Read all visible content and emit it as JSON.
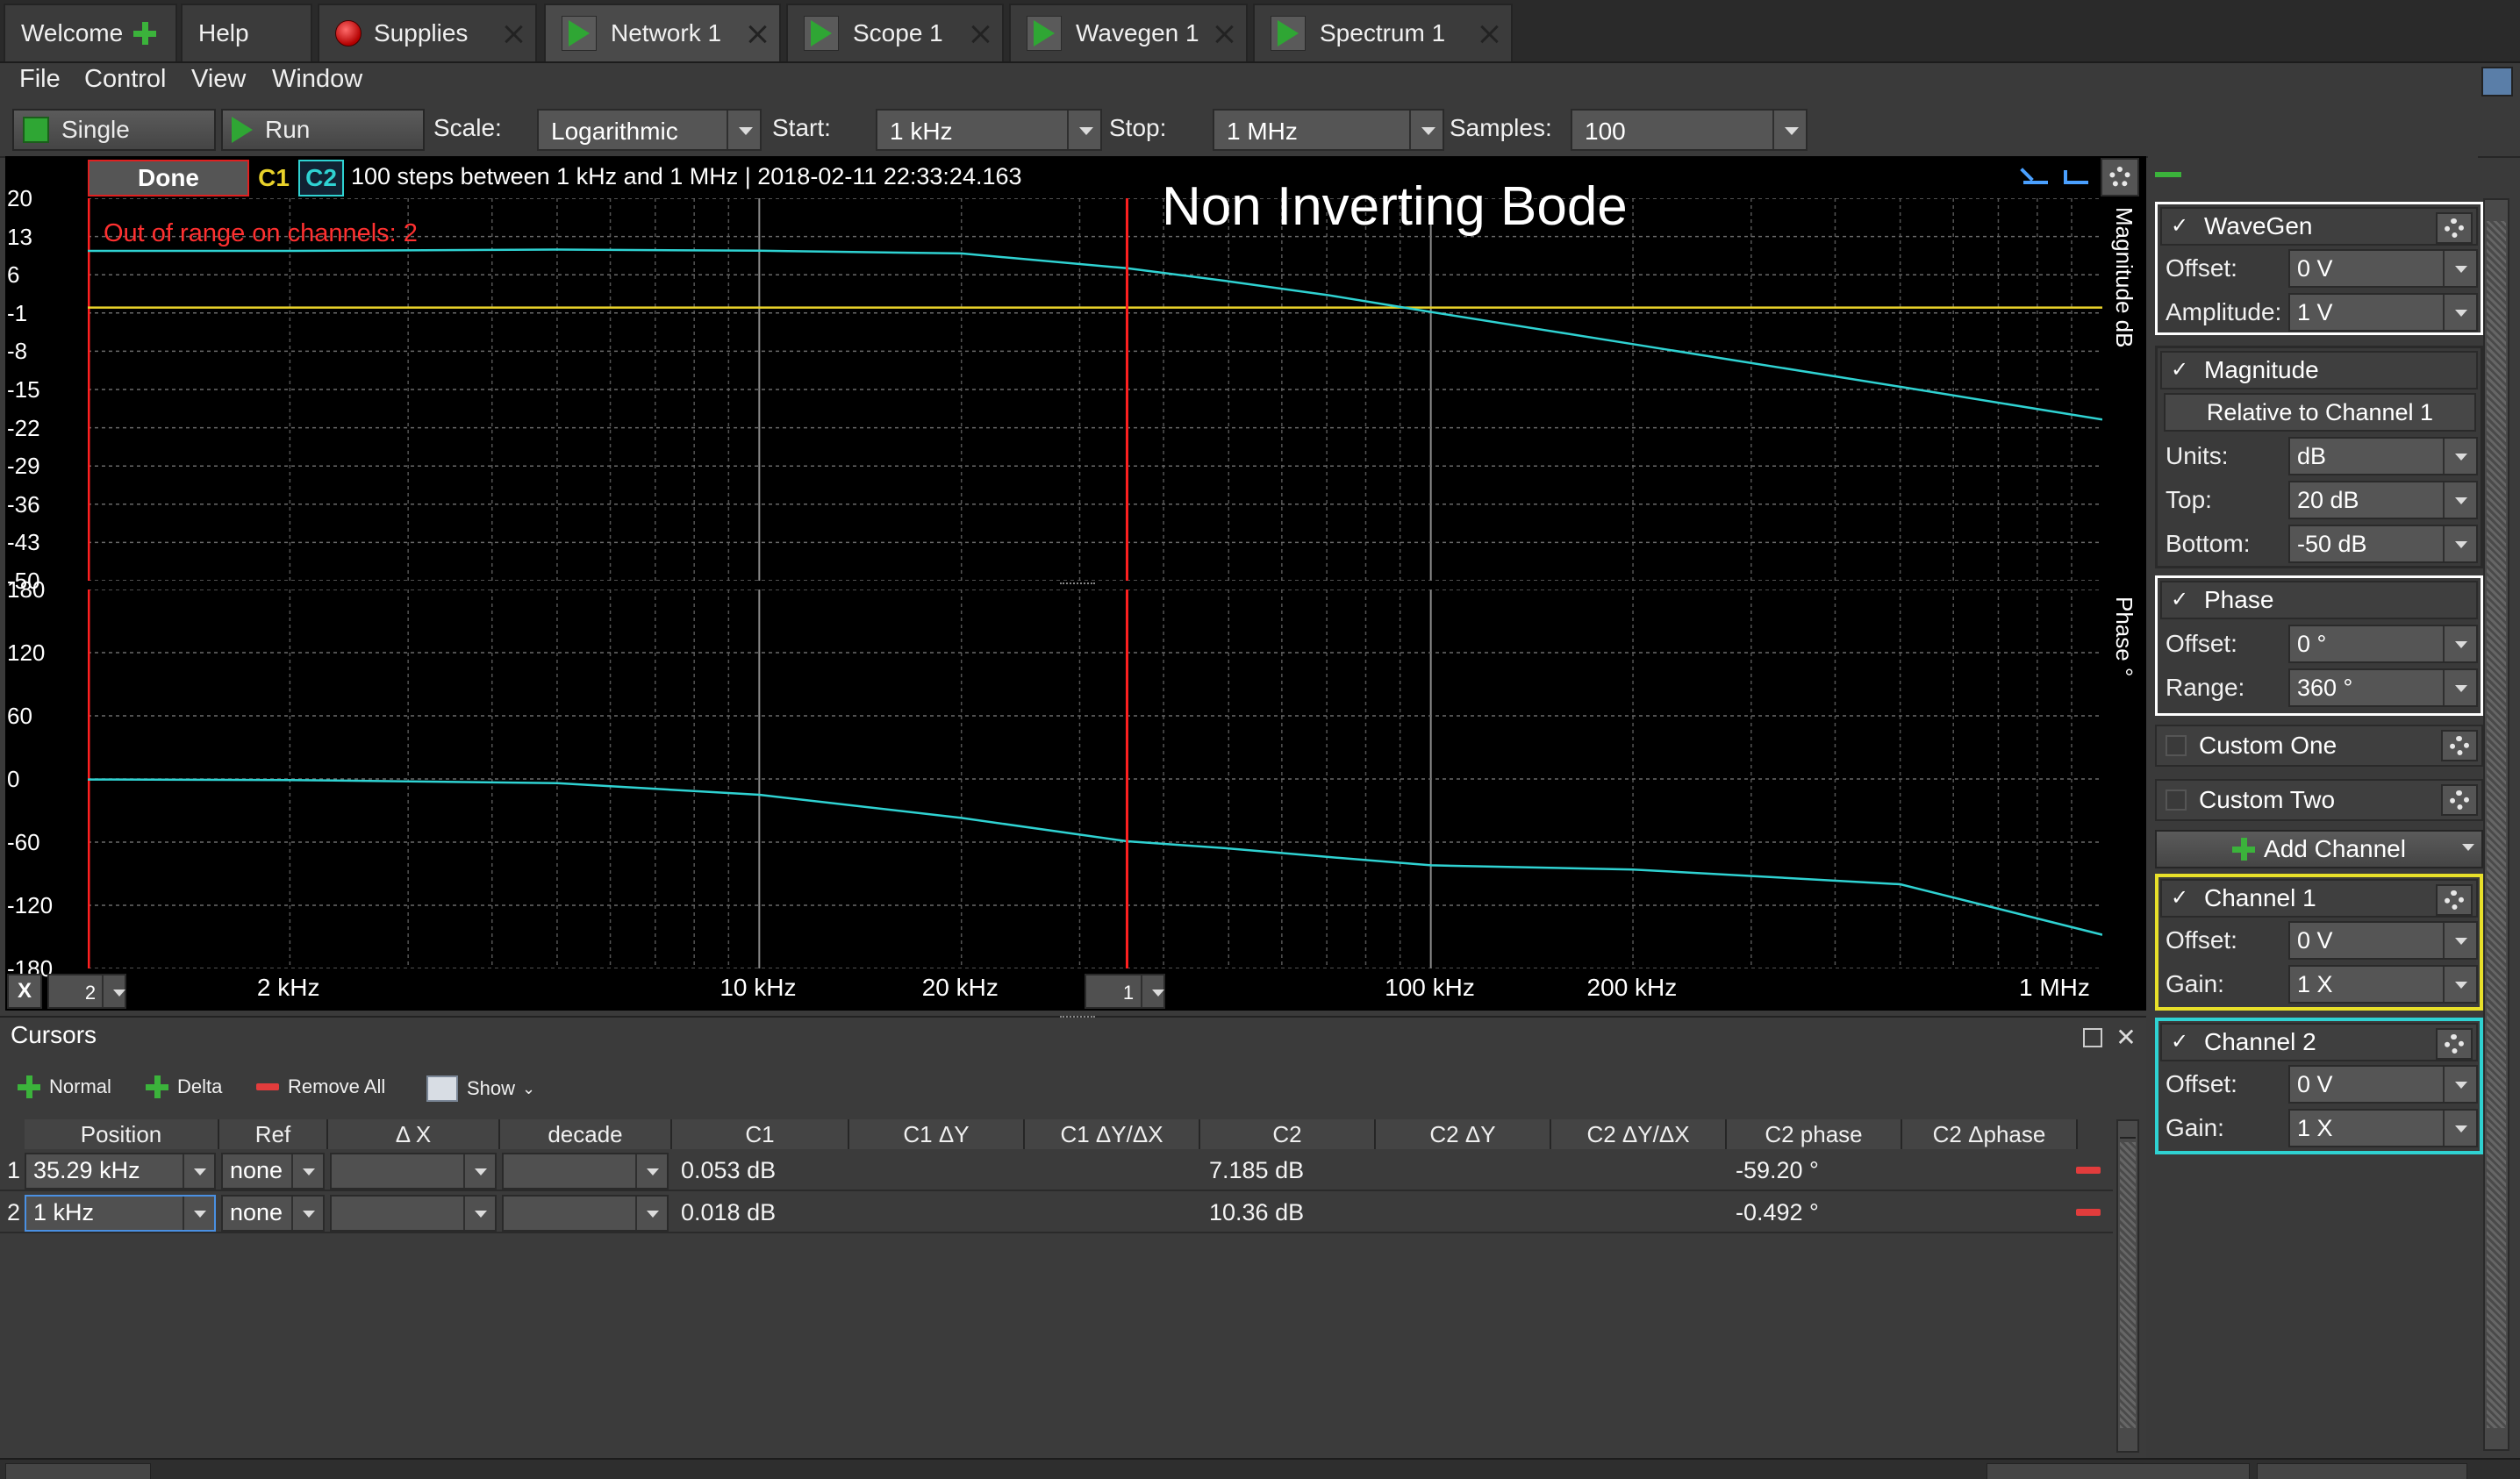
{
  "tabs": [
    {
      "label": "Welcome"
    },
    {
      "label": "Help"
    },
    {
      "label": "Supplies"
    },
    {
      "label": "Network 1"
    },
    {
      "label": "Scope 1"
    },
    {
      "label": "Wavegen 1"
    },
    {
      "label": "Spectrum 1"
    }
  ],
  "menu": {
    "file": "File",
    "control": "Control",
    "view": "View",
    "window": "Window"
  },
  "toolbar": {
    "single_label": "Single",
    "run_label": "Run",
    "scale_label": "Scale:",
    "scale_value": "Logarithmic",
    "start_label": "Start:",
    "start_value": "1 kHz",
    "stop_label": "Stop:",
    "stop_value": "1 MHz",
    "samples_label": "Samples:",
    "samples_value": "100"
  },
  "plot": {
    "status": "Done",
    "ch1_tag": "C1",
    "ch2_tag": "C2",
    "info": "100 steps  between 1 kHz and 1 MHz | 2018-02-11 22:33:24.163",
    "title": "Non Inverting Bode",
    "warning": "Out of range on channels: 2",
    "magnitude_axis_label": "Magnitude dB",
    "phase_axis_label": "Phase °",
    "x_button": "X",
    "x_cursor_select": "2",
    "cursor_flag": "1",
    "colors": {
      "ch1": "#e8d12a",
      "ch2": "#2fd2d2",
      "cursor": "#ff2020",
      "warning": "#ff3030"
    }
  },
  "chart_data": [
    {
      "type": "line",
      "title": "Non Inverting Bode",
      "xlabel": "",
      "ylabel": "Magnitude dB",
      "xscale": "log",
      "xlim": [
        1000,
        1000000
      ],
      "ylim": [
        -50,
        20
      ],
      "y_ticks": [
        "20",
        "13",
        "6",
        "-1",
        "-8",
        "-15",
        "-22",
        "-29",
        "-36",
        "-43",
        "-50"
      ],
      "x_ticks": [
        "2 kHz",
        "10 kHz",
        "20 kHz",
        "100 kHz",
        "200 kHz",
        "1 MHz"
      ],
      "grid": true,
      "series": [
        {
          "name": "C1",
          "color": "#e8d12a",
          "x": [
            1000,
            1000000
          ],
          "y": [
            0,
            0
          ]
        },
        {
          "name": "C2",
          "color": "#2fd2d2",
          "x": [
            1000,
            2000,
            5000,
            10000,
            20000,
            35290,
            50000,
            70000,
            100000,
            200000,
            500000,
            1000000
          ],
          "y": [
            10.36,
            10.37,
            10.6,
            10.4,
            9.9,
            7.185,
            4.8,
            2.3,
            -0.8,
            -6.7,
            -14.5,
            -20.5
          ]
        }
      ],
      "cursors": [
        {
          "label": "1",
          "x": 35290
        }
      ]
    },
    {
      "type": "line",
      "xlabel": "",
      "ylabel": "Phase °",
      "xscale": "log",
      "xlim": [
        1000,
        1000000
      ],
      "ylim": [
        -180,
        180
      ],
      "y_ticks": [
        "180",
        "120",
        "60",
        "0",
        "-60",
        "-120",
        "-180"
      ],
      "x_ticks": [
        "2 kHz",
        "10 kHz",
        "20 kHz",
        "100 kHz",
        "200 kHz",
        "1 MHz"
      ],
      "grid": true,
      "series": [
        {
          "name": "C2",
          "color": "#2fd2d2",
          "x": [
            1000,
            2000,
            5000,
            10000,
            20000,
            35290,
            50000,
            70000,
            100000,
            200000,
            500000,
            1000000
          ],
          "y": [
            -0.492,
            -1,
            -4,
            -15,
            -37,
            -59.2,
            -66,
            -74,
            -82,
            -86,
            -100,
            -148
          ]
        }
      ]
    }
  ],
  "cursors": {
    "title": "Cursors",
    "tools": {
      "normal": "Normal",
      "delta": "Delta",
      "remove_all": "Remove All",
      "show": "Show"
    },
    "columns": [
      "Position",
      "Ref",
      "Δ X",
      "decade",
      "C1",
      "C1 ΔY",
      "C1 ΔY/ΔX",
      "C2",
      "C2 ΔY",
      "C2 ΔY/ΔX",
      "C2 phase",
      "C2 Δphase"
    ],
    "rows": [
      {
        "index": "1",
        "position": "35.29 kHz",
        "ref": "none",
        "c1": "0.053 dB",
        "c2": "7.185 dB",
        "c2_phase": "-59.20 °"
      },
      {
        "index": "2",
        "position": "1 kHz",
        "ref": "none",
        "c1": "0.018 dB",
        "c2": "10.36 dB",
        "c2_phase": "-0.492 °"
      }
    ]
  },
  "right_panel": {
    "wavegen": {
      "title": "WaveGen",
      "offset_label": "Offset:",
      "offset": "0 V",
      "amplitude_label": "Amplitude:",
      "amplitude": "1 V"
    },
    "magnitude": {
      "title": "Magnitude",
      "relative": "Relative to Channel 1",
      "units_label": "Units:",
      "units": "dB",
      "top_label": "Top:",
      "top": "20 dB",
      "bottom_label": "Bottom:",
      "bottom": "-50 dB"
    },
    "phase": {
      "title": "Phase",
      "offset_label": "Offset:",
      "offset": "0 °",
      "range_label": "Range:",
      "range": "360 °"
    },
    "custom_one": "Custom One",
    "custom_two": "Custom Two",
    "add_channel": "Add Channel",
    "channel1": {
      "title": "Channel 1",
      "offset_label": "Offset:",
      "offset": "0 V",
      "gain_label": "Gain:",
      "gain": "1 X",
      "color": "#e8e02a"
    },
    "channel2": {
      "title": "Channel 2",
      "offset_label": "Offset:",
      "offset": "0 V",
      "gain_label": "Gain:",
      "gain": "1 X",
      "color": "#2fd2d2"
    }
  }
}
